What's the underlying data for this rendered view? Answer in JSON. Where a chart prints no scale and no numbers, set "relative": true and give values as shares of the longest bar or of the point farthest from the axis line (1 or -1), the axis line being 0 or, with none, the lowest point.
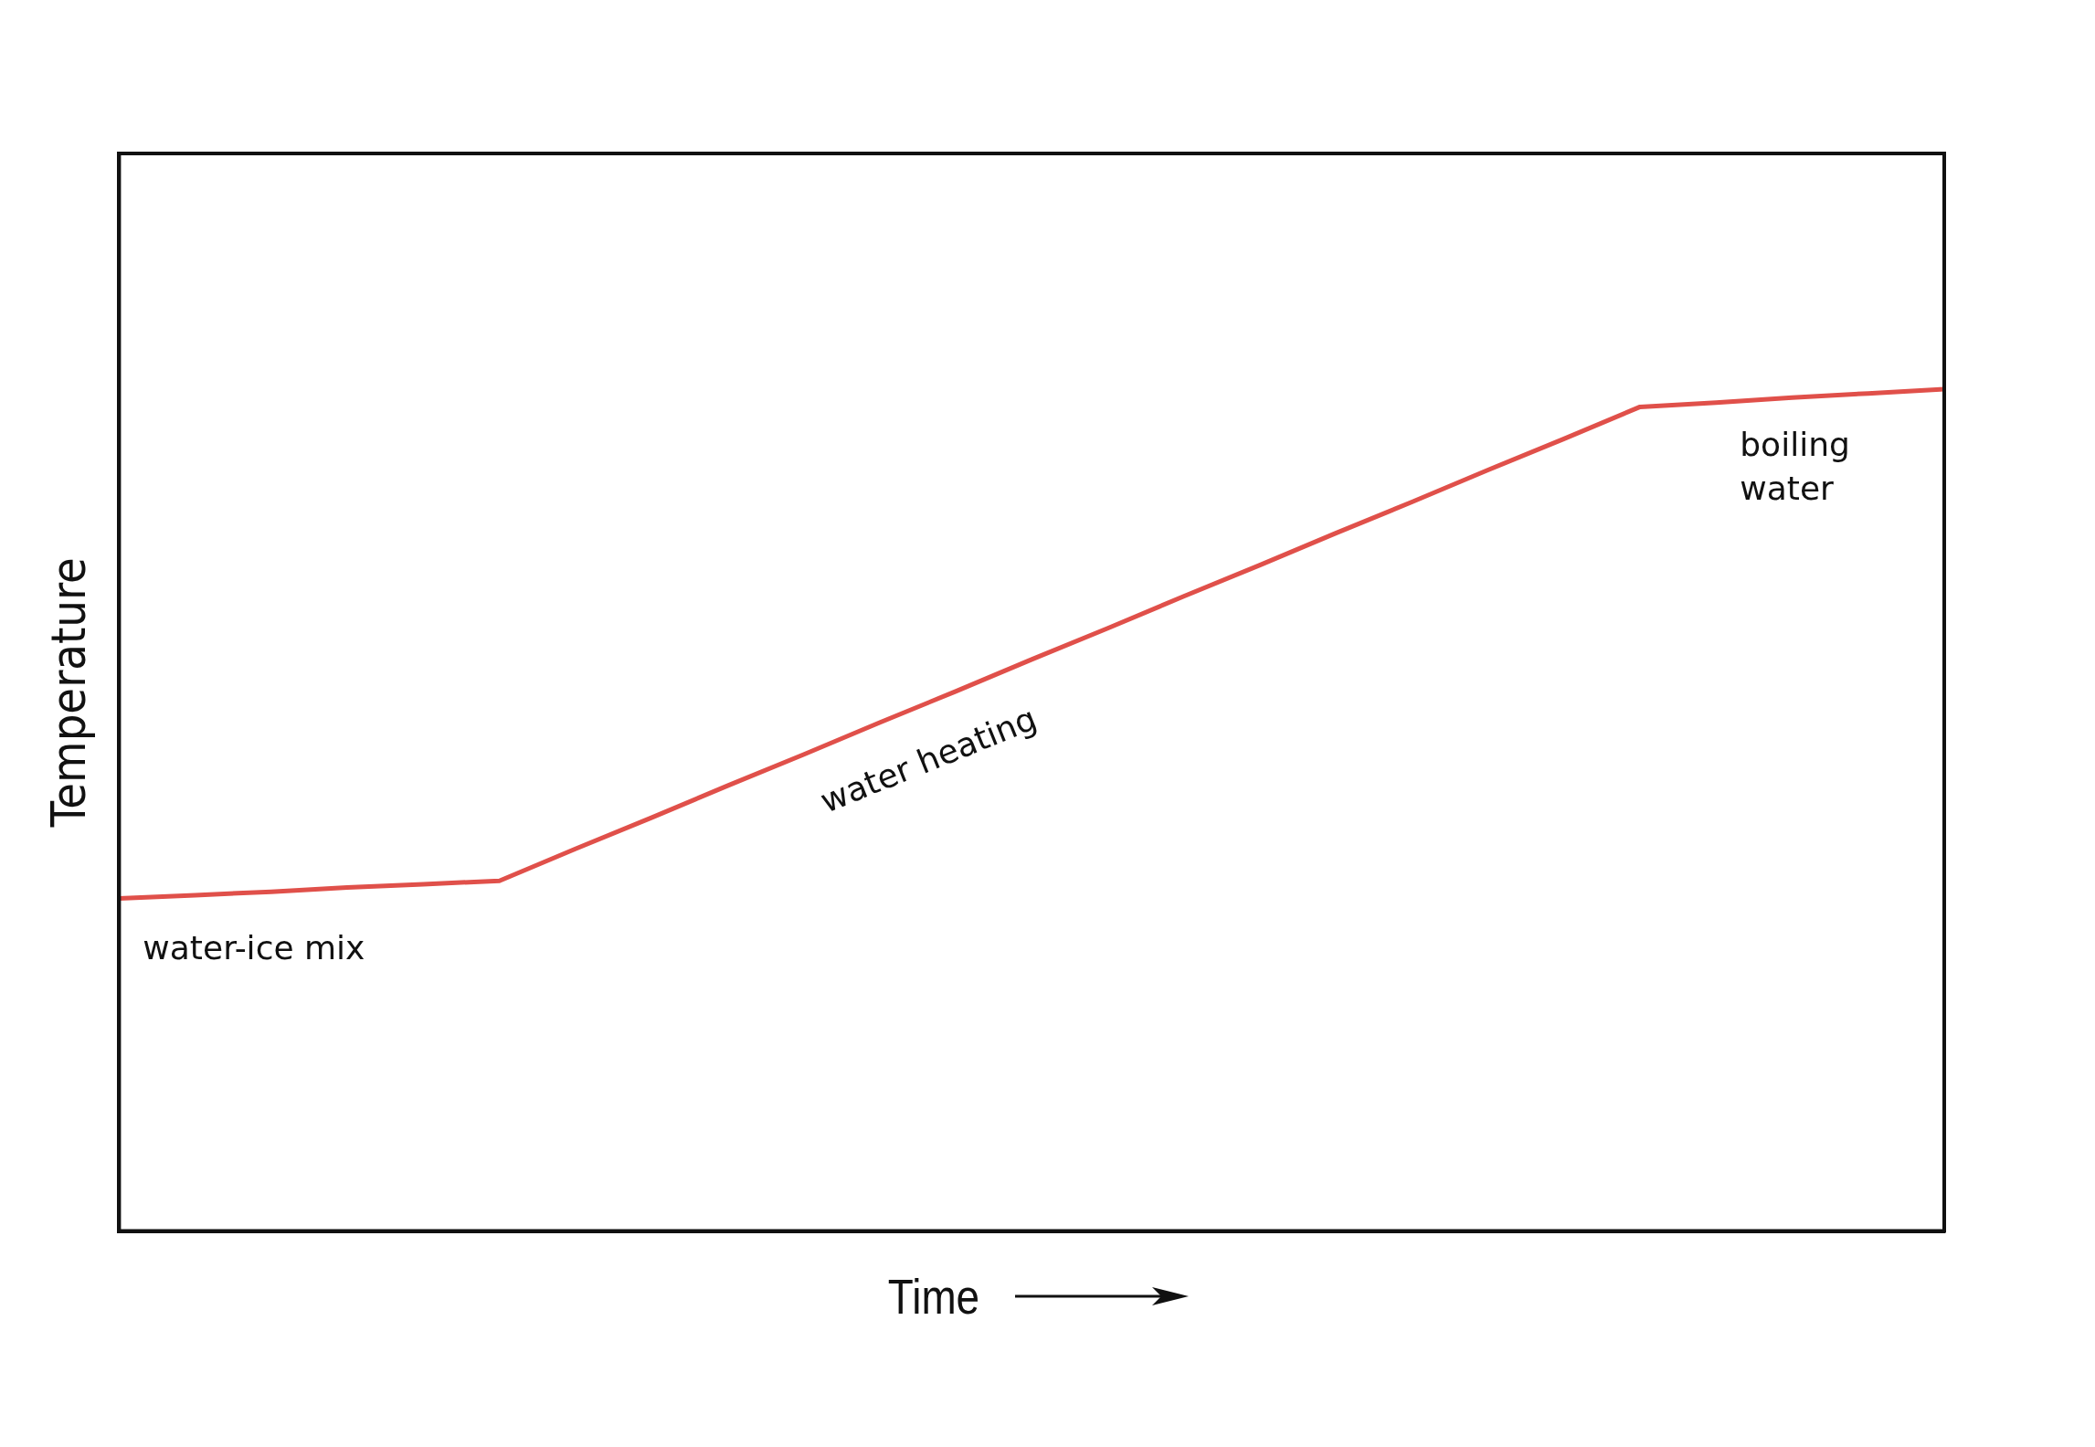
{
  "chart_data": {
    "type": "line",
    "relative": true,
    "xlabel": "Time",
    "ylabel": "Temperature",
    "categories": [
      null,
      null,
      null,
      null,
      null,
      null,
      null,
      null,
      null,
      null,
      null,
      null,
      null,
      null,
      null,
      null,
      null,
      null,
      null,
      null,
      null,
      null,
      null,
      null,
      null
    ],
    "series": [
      {
        "color": "#e0504a",
        "values": [
          0.395,
          0.399,
          0.403,
          0.408,
          0.412,
          0.416,
          0.454,
          0.491,
          0.529,
          0.566,
          0.604,
          0.641,
          0.679,
          0.716,
          0.754,
          0.791,
          0.829,
          0.866,
          0.904,
          0.941,
          0.979,
          0.984,
          0.99,
          0.995,
          1
        ]
      }
    ],
    "annotations": [
      "water-ice mix",
      "water heating",
      "boiling water"
    ],
    "grid": false,
    "legend": false,
    "marker": "none",
    "line_style": "solid"
  }
}
